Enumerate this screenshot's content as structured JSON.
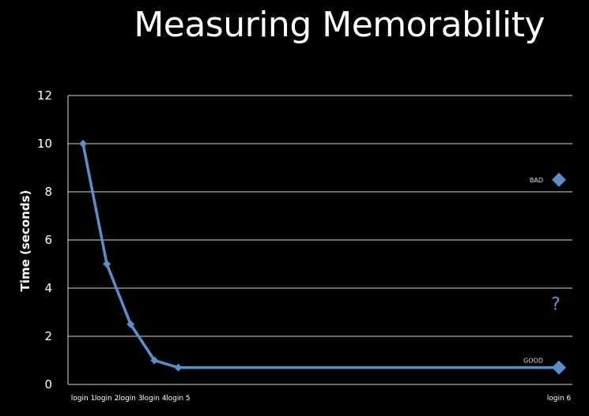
{
  "slide": {
    "title": "Measuring Memorability"
  },
  "colors": {
    "background": "#000000",
    "series": "#5b8fc9",
    "grid": "#d9d9d9",
    "text": "#ffffff",
    "question": "#6f97c2"
  },
  "chart_data": {
    "type": "line",
    "title": "",
    "ylabel": "Time (seconds)",
    "xlabel": "",
    "ylim": [
      0,
      12
    ],
    "yticks": [
      0,
      2,
      4,
      6,
      8,
      10,
      12
    ],
    "grid": true,
    "categories": [
      "login 1",
      "login 2",
      "login 3",
      "login 4",
      "login 5",
      "",
      "",
      "",
      "",
      "",
      "",
      "",
      "",
      "",
      "",
      "",
      "",
      "",
      "",
      "",
      "login 6"
    ],
    "series": [
      {
        "values": [
          10,
          5,
          2.5,
          1,
          0.7,
          0.7,
          0.7,
          0.7,
          0.7,
          0.7,
          0.7,
          0.7,
          0.7,
          0.7,
          0.7,
          0.7,
          0.7,
          0.7,
          0.7,
          0.7,
          0.7
        ]
      }
    ],
    "extra_points": [
      {
        "label": "BAD",
        "x": "login 6",
        "y": 8.5
      },
      {
        "label": "GOOD",
        "x": "login 6",
        "y": 0.7
      }
    ],
    "annotations": [
      {
        "text": "?",
        "x": "login 6",
        "y": 3.3
      }
    ]
  }
}
